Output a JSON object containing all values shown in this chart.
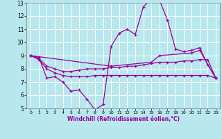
{
  "xlabel": "Windchill (Refroidissement éolien,°C)",
  "background_color": "#b8e8ee",
  "grid_color": "#ffffff",
  "line_color": "#990099",
  "xlim": [
    -0.5,
    23.5
  ],
  "ylim": [
    5,
    13
  ],
  "yticks": [
    5,
    6,
    7,
    8,
    9,
    10,
    11,
    12,
    13
  ],
  "xticks": [
    0,
    1,
    2,
    3,
    4,
    5,
    6,
    7,
    8,
    9,
    10,
    11,
    12,
    13,
    14,
    15,
    16,
    17,
    18,
    19,
    20,
    21,
    22,
    23
  ],
  "line1_x": [
    0,
    1,
    2,
    3,
    4,
    5,
    6,
    7,
    8,
    9,
    10,
    11,
    12,
    13,
    14,
    15,
    16,
    17,
    18,
    19,
    20,
    21,
    22,
    23
  ],
  "line1_y": [
    9.0,
    8.9,
    7.3,
    7.4,
    7.0,
    6.3,
    6.4,
    5.7,
    4.9,
    5.3,
    9.7,
    10.7,
    11.0,
    10.6,
    12.7,
    13.3,
    13.2,
    11.7,
    9.5,
    9.3,
    9.4,
    9.6,
    8.3,
    7.3
  ],
  "line2_x": [
    0,
    1,
    2,
    3,
    4,
    5,
    6,
    7,
    8,
    9,
    10,
    11,
    12,
    13,
    14,
    15,
    16,
    17,
    18,
    19,
    20,
    21,
    22,
    23
  ],
  "line2_y": [
    9.0,
    8.8,
    8.2,
    8.0,
    7.8,
    7.8,
    7.9,
    8.0,
    8.0,
    8.0,
    8.1,
    8.1,
    8.2,
    8.2,
    8.3,
    8.4,
    8.5,
    8.5,
    8.5,
    8.6,
    8.6,
    8.7,
    8.7,
    7.3
  ],
  "line3_x": [
    0,
    1,
    2,
    3,
    4,
    5,
    6,
    7,
    8,
    9,
    10,
    11,
    12,
    13,
    14,
    15,
    16,
    17,
    18,
    19,
    20,
    21,
    22,
    23
  ],
  "line3_y": [
    9.0,
    8.7,
    8.0,
    7.7,
    7.5,
    7.4,
    7.4,
    7.4,
    7.5,
    7.5,
    7.5,
    7.5,
    7.5,
    7.5,
    7.5,
    7.5,
    7.5,
    7.5,
    7.5,
    7.5,
    7.5,
    7.5,
    7.5,
    7.3
  ],
  "line4_x": [
    0,
    10,
    15,
    16,
    20,
    21,
    23
  ],
  "line4_y": [
    9.0,
    8.2,
    8.5,
    9.0,
    9.2,
    9.4,
    7.3
  ]
}
